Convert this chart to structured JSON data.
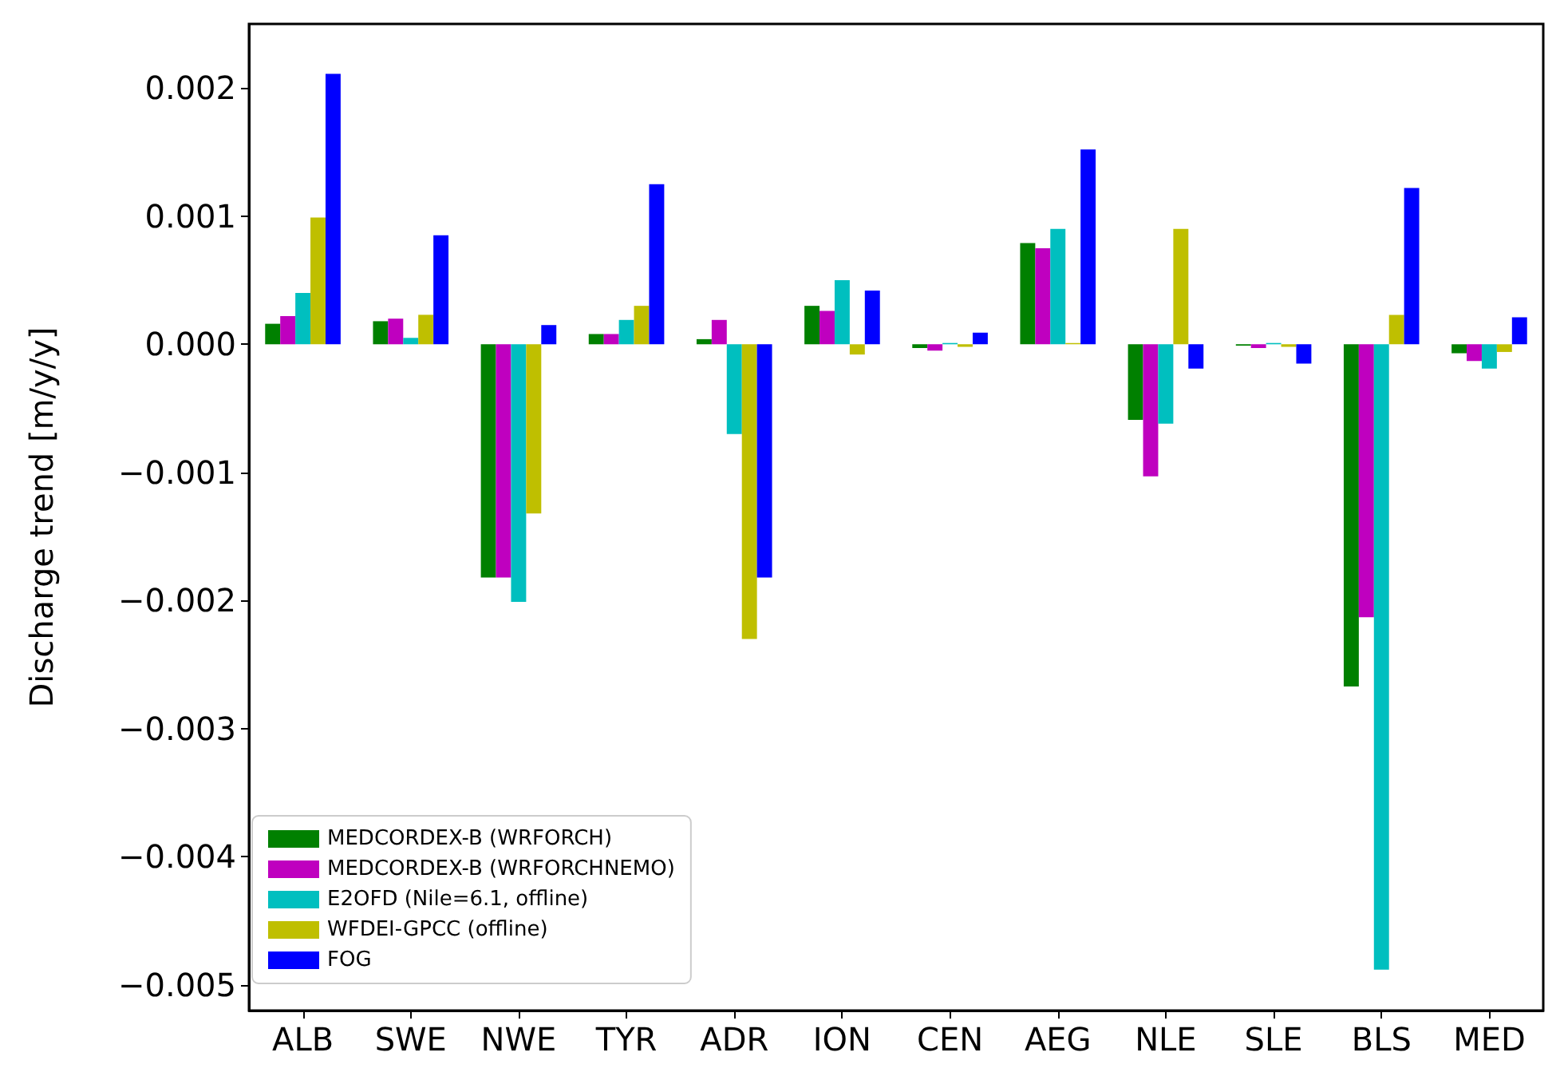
{
  "chart_data": {
    "type": "bar",
    "ylabel": "Discharge trend [m/y/y]",
    "categories": [
      "ALB",
      "SWE",
      "NWE",
      "TYR",
      "ADR",
      "ION",
      "CEN",
      "AEG",
      "NLE",
      "SLE",
      "BLS",
      "MED"
    ],
    "series": [
      {
        "name": "MEDCORDEX-B (WRFORCH)",
        "color": "#008000",
        "values": [
          0.00016,
          0.00018,
          -0.00182,
          8e-05,
          4e-05,
          0.0003,
          -3e-05,
          0.00079,
          -0.00059,
          -1e-05,
          -0.00267,
          -7e-05
        ]
      },
      {
        "name": "MEDCORDEX-B (WRFORCHNEMO)",
        "color": "#bf00bf",
        "values": [
          0.00022,
          0.0002,
          -0.00182,
          8e-05,
          0.00019,
          0.00026,
          -5e-05,
          0.00075,
          -0.00103,
          -3e-05,
          -0.00213,
          -0.00013
        ]
      },
      {
        "name": "E2OFD (Nile=6.1, offline)",
        "color": "#00bfbf",
        "values": [
          0.0004,
          5e-05,
          -0.00201,
          0.00019,
          -0.0007,
          0.0005,
          1e-05,
          0.0009,
          -0.00062,
          1e-05,
          -0.00488,
          -0.00019
        ]
      },
      {
        "name": "WFDEI-GPCC (offline)",
        "color": "#bfbf00",
        "values": [
          0.00099,
          0.00023,
          -0.00132,
          0.0003,
          -0.0023,
          -8e-05,
          -2e-05,
          1e-05,
          0.0009,
          -2e-05,
          0.00023,
          -6e-05
        ]
      },
      {
        "name": "FOG",
        "color": "#0000ff",
        "values": [
          0.00211,
          0.00085,
          0.00015,
          0.00125,
          -0.00182,
          0.00042,
          9e-05,
          0.00152,
          -0.00019,
          -0.00015,
          0.00122,
          0.00021
        ]
      }
    ],
    "ylim": [
      -0.0052,
      0.0025
    ],
    "yticks": [
      {
        "value": -0.005,
        "label": "−0.005"
      },
      {
        "value": -0.004,
        "label": "−0.004"
      },
      {
        "value": -0.003,
        "label": "−0.003"
      },
      {
        "value": -0.002,
        "label": "−0.002"
      },
      {
        "value": -0.001,
        "label": "−0.001"
      },
      {
        "value": 0,
        "label": "0.000"
      },
      {
        "value": 0.001,
        "label": "0.001"
      },
      {
        "value": 0.002,
        "label": "0.002"
      }
    ],
    "grid": false,
    "legend": "bottom left"
  }
}
